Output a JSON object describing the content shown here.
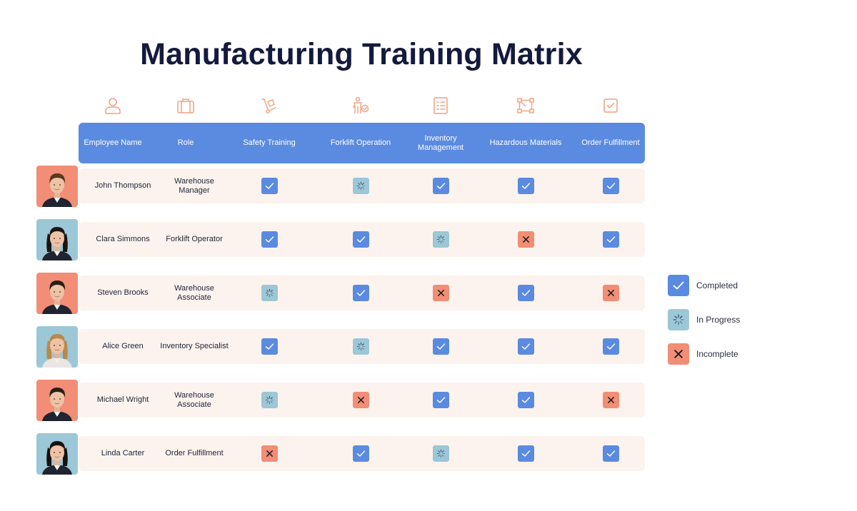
{
  "title": "Manufacturing Training Matrix",
  "colors": {
    "header": "#5b8be0",
    "completed": "#5b8be0",
    "in_progress": "#9cc7d6",
    "incomplete": "#f28d76",
    "row_bg": "#fcf3ee",
    "icon": "#f0a07f"
  },
  "columns": [
    {
      "label": "Employee Name",
      "icon": "person-icon"
    },
    {
      "label": "Role",
      "icon": "briefcase-icon"
    },
    {
      "label": "Safety Training",
      "icon": "hand-truck-icon"
    },
    {
      "label": "Forklift Operation",
      "icon": "worker-check-icon"
    },
    {
      "label": "Inventory Management",
      "icon": "checklist-icon"
    },
    {
      "label": "Hazardous Materials",
      "icon": "network-icon"
    },
    {
      "label": "Order Fulfillment",
      "icon": "checkbox-icon"
    }
  ],
  "employees": [
    {
      "name": "John Thompson",
      "role": "Warehouse Manager",
      "avatar_bg": "#f28d76",
      "statuses": [
        "completed",
        "in_progress",
        "completed",
        "completed",
        "completed"
      ]
    },
    {
      "name": "Clara Simmons",
      "role": "Forklift Operator",
      "avatar_bg": "#9cc7d6",
      "statuses": [
        "completed",
        "completed",
        "in_progress",
        "incomplete",
        "completed"
      ]
    },
    {
      "name": "Steven Brooks",
      "role": "Warehouse Associate",
      "avatar_bg": "#f28d76",
      "statuses": [
        "in_progress",
        "completed",
        "incomplete",
        "completed",
        "incomplete"
      ]
    },
    {
      "name": "Alice Green",
      "role": "Inventory Specialist",
      "avatar_bg": "#9cc7d6",
      "statuses": [
        "completed",
        "in_progress",
        "completed",
        "completed",
        "completed"
      ]
    },
    {
      "name": "Michael Wright",
      "role": "Warehouse Associate",
      "avatar_bg": "#f28d76",
      "statuses": [
        "in_progress",
        "incomplete",
        "completed",
        "completed",
        "incomplete"
      ]
    },
    {
      "name": "Linda Carter",
      "role": "Order Fulfillment",
      "avatar_bg": "#9cc7d6",
      "statuses": [
        "incomplete",
        "completed",
        "in_progress",
        "completed",
        "completed"
      ]
    }
  ],
  "legend": [
    {
      "status": "completed",
      "label": "Completed"
    },
    {
      "status": "in_progress",
      "label": "In Progress"
    },
    {
      "status": "incomplete",
      "label": "Incomplete"
    }
  ]
}
